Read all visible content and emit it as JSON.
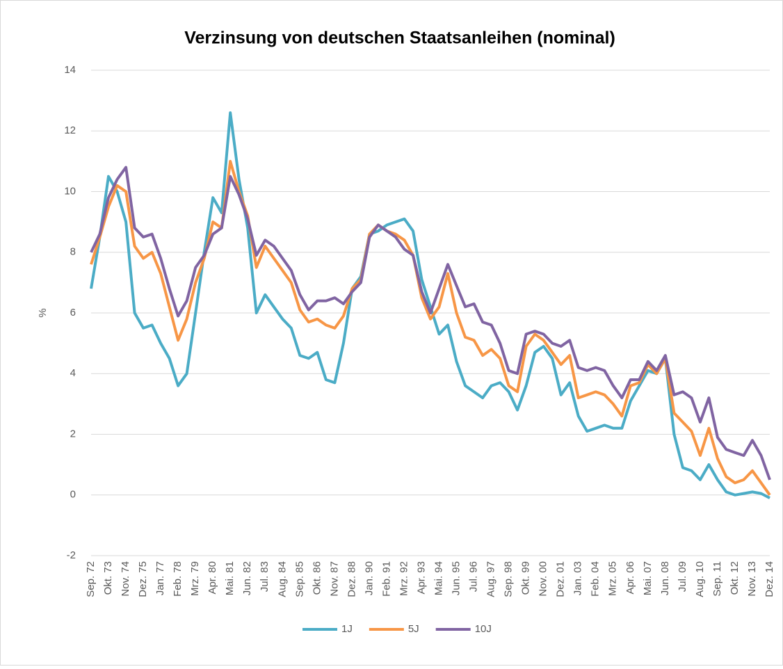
{
  "chart_data": {
    "type": "line",
    "title": "Verzinsung von deutschen Staatsanleihen (nominal)",
    "ylabel": "%",
    "categories": [
      "Sep. 72",
      null,
      "Okt. 73",
      null,
      "Nov. 74",
      null,
      "Dez. 75",
      null,
      "Jan. 77",
      null,
      "Feb. 78",
      null,
      "Mrz. 79",
      null,
      "Apr. 80",
      null,
      "Mai. 81",
      null,
      "Jun. 82",
      null,
      "Jul. 83",
      null,
      "Aug. 84",
      null,
      "Sep. 85",
      null,
      "Okt. 86",
      null,
      "Nov. 87",
      null,
      "Dez. 88",
      null,
      "Jan. 90",
      null,
      "Feb. 91",
      null,
      "Mrz. 92",
      null,
      "Apr. 93",
      null,
      "Mai. 94",
      null,
      "Jun. 95",
      null,
      "Jul. 96",
      null,
      "Aug. 97",
      null,
      "Sep. 98",
      null,
      "Okt. 99",
      null,
      "Nov. 00",
      null,
      "Dez. 01",
      null,
      "Jan. 03",
      null,
      "Feb. 04",
      null,
      "Mrz. 05",
      null,
      "Apr. 06",
      null,
      "Mai. 07",
      null,
      "Jun. 08",
      null,
      "Jul. 09",
      null,
      "Aug. 10",
      null,
      "Sep. 11",
      null,
      "Okt. 12",
      null,
      "Nov. 13",
      null,
      "Dez. 14"
    ],
    "series": [
      {
        "name": "1J",
        "color": "#4bacc6",
        "values": [
          6.8,
          8.5,
          10.5,
          10.0,
          9.0,
          6.0,
          5.5,
          5.6,
          5.0,
          4.5,
          3.6,
          4.0,
          6.0,
          8.0,
          9.8,
          9.3,
          12.6,
          10.4,
          8.8,
          6.0,
          6.6,
          6.2,
          5.8,
          5.5,
          4.6,
          4.5,
          4.7,
          3.8,
          3.7,
          5.0,
          6.8,
          7.2,
          8.6,
          8.7,
          8.9,
          9.0,
          9.1,
          8.7,
          7.1,
          6.2,
          5.3,
          5.6,
          4.4,
          3.6,
          3.4,
          3.2,
          3.6,
          3.7,
          3.4,
          2.8,
          3.6,
          4.7,
          4.9,
          4.5,
          3.3,
          3.7,
          2.6,
          2.1,
          2.2,
          2.3,
          2.2,
          2.2,
          3.1,
          3.6,
          4.1,
          4.0,
          4.5,
          2.0,
          0.9,
          0.8,
          0.5,
          1.0,
          0.5,
          0.1,
          0.0,
          0.05,
          0.1,
          0.05,
          -0.1
        ]
      },
      {
        "name": "5J",
        "color": "#f79646",
        "values": [
          7.6,
          8.5,
          9.5,
          10.2,
          10.0,
          8.2,
          7.8,
          8.0,
          7.3,
          6.2,
          5.1,
          5.8,
          7.0,
          7.8,
          9.0,
          8.8,
          11.0,
          10.0,
          9.2,
          7.5,
          8.2,
          7.8,
          7.4,
          7.0,
          6.1,
          5.7,
          5.8,
          5.6,
          5.5,
          5.9,
          6.8,
          7.1,
          8.6,
          8.9,
          8.7,
          8.6,
          8.4,
          7.9,
          6.5,
          5.8,
          6.2,
          7.3,
          6.0,
          5.2,
          5.1,
          4.6,
          4.8,
          4.5,
          3.6,
          3.4,
          4.9,
          5.3,
          5.1,
          4.7,
          4.3,
          4.6,
          3.2,
          3.3,
          3.4,
          3.3,
          3.0,
          2.6,
          3.6,
          3.7,
          4.3,
          4.0,
          4.5,
          2.7,
          2.4,
          2.1,
          1.3,
          2.2,
          1.2,
          0.6,
          0.4,
          0.5,
          0.8,
          0.4,
          0.0
        ]
      },
      {
        "name": "10J",
        "color": "#8064a2",
        "values": [
          8.0,
          8.6,
          9.8,
          10.4,
          10.8,
          8.8,
          8.5,
          8.6,
          7.8,
          6.8,
          5.9,
          6.4,
          7.5,
          7.9,
          8.6,
          8.8,
          10.5,
          9.9,
          9.1,
          7.9,
          8.4,
          8.2,
          7.8,
          7.4,
          6.6,
          6.1,
          6.4,
          6.4,
          6.5,
          6.3,
          6.7,
          7.0,
          8.5,
          8.9,
          8.7,
          8.5,
          8.1,
          7.9,
          6.7,
          6.0,
          6.8,
          7.6,
          6.9,
          6.2,
          6.3,
          5.7,
          5.6,
          5.0,
          4.1,
          4.0,
          5.3,
          5.4,
          5.3,
          5.0,
          4.9,
          5.1,
          4.2,
          4.1,
          4.2,
          4.1,
          3.6,
          3.2,
          3.8,
          3.8,
          4.4,
          4.1,
          4.6,
          3.3,
          3.4,
          3.2,
          2.4,
          3.2,
          1.9,
          1.5,
          1.4,
          1.3,
          1.8,
          1.3,
          0.5
        ]
      }
    ],
    "ylim": [
      -2,
      14
    ],
    "yticks": [
      -2,
      0,
      2,
      4,
      6,
      8,
      10,
      12,
      14
    ],
    "grid": true,
    "legend": "bottom"
  }
}
